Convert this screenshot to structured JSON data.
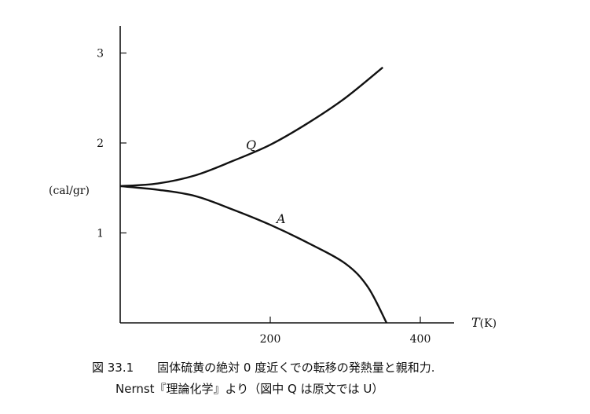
{
  "chart_data": {
    "type": "line",
    "ylabel": "(cal/gr)",
    "xlabel_symbol": "T",
    "xlabel_unit": "(K)",
    "xlim": [
      0,
      444
    ],
    "ylim": [
      0,
      3.3
    ],
    "xticks": [
      200,
      400
    ],
    "yticks": [
      1,
      2,
      3
    ],
    "grid": false,
    "series": [
      {
        "name": "Q",
        "x": [
          0,
          50,
          100,
          150,
          200,
          250,
          300,
          350
        ],
        "y": [
          1.52,
          1.55,
          1.64,
          1.8,
          1.98,
          2.22,
          2.5,
          2.84
        ]
      },
      {
        "name": "A",
        "x": [
          0,
          50,
          100,
          150,
          200,
          250,
          300,
          330,
          355
        ],
        "y": [
          1.52,
          1.48,
          1.41,
          1.26,
          1.09,
          0.89,
          0.66,
          0.4,
          0.0
        ]
      }
    ],
    "color": "#111111"
  },
  "caption": {
    "line1": "図 33.1　　固体硫黄の絶対 0 度近くでの転移の発熱量と親和力.",
    "line2": "Nernst『理論化学』より（図中 Q は原文では U）"
  }
}
